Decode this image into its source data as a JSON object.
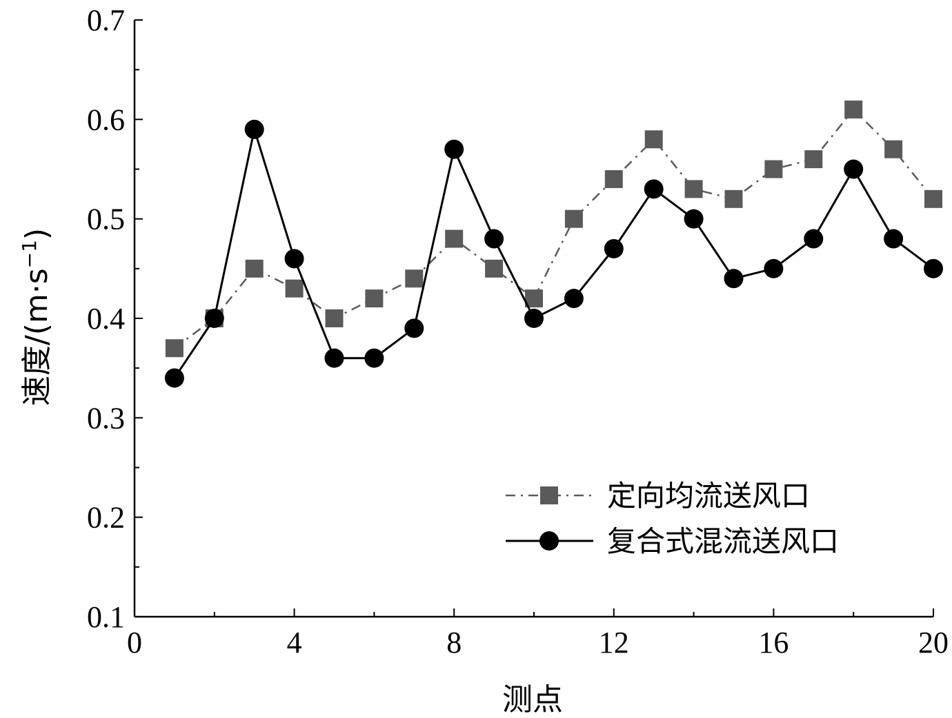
{
  "chart_data": {
    "type": "line",
    "xlabel": "测点",
    "ylabel": "速度/(m·s",
    "ylabel_sup": "−1",
    "ylabel_close": ")",
    "xlim": [
      0,
      20
    ],
    "ylim": [
      0.1,
      0.7
    ],
    "xticks": [
      0,
      4,
      8,
      12,
      16,
      20
    ],
    "xtick_labels": [
      "0",
      "4",
      "8",
      "12",
      "16",
      "20"
    ],
    "yticks": [
      0.1,
      0.2,
      0.3,
      0.4,
      0.5,
      0.6,
      0.7
    ],
    "ytick_labels": [
      "0.1",
      "0.2",
      "0.3",
      "0.4",
      "0.5",
      "0.6",
      "0.7"
    ],
    "grid": false,
    "legend_position": "bottom-right",
    "x": [
      1,
      2,
      3,
      4,
      5,
      6,
      7,
      8,
      9,
      10,
      11,
      12,
      13,
      14,
      15,
      16,
      17,
      18,
      19,
      20
    ],
    "series": [
      {
        "name": "定向均流送风口",
        "marker": "square",
        "line_style": "dash-dot",
        "color": "#5a5a5a",
        "values": [
          0.37,
          0.4,
          0.45,
          0.43,
          0.4,
          0.42,
          0.44,
          0.48,
          0.45,
          0.42,
          0.5,
          0.54,
          0.58,
          0.53,
          0.52,
          0.55,
          0.56,
          0.61,
          0.57,
          0.52
        ]
      },
      {
        "name": "复合式混流送风口",
        "marker": "circle",
        "line_style": "solid",
        "color": "#000000",
        "values": [
          0.34,
          0.4,
          0.59,
          0.46,
          0.36,
          0.36,
          0.39,
          0.57,
          0.48,
          0.4,
          0.42,
          0.47,
          0.53,
          0.5,
          0.44,
          0.45,
          0.48,
          0.55,
          0.48,
          0.45
        ]
      }
    ]
  }
}
